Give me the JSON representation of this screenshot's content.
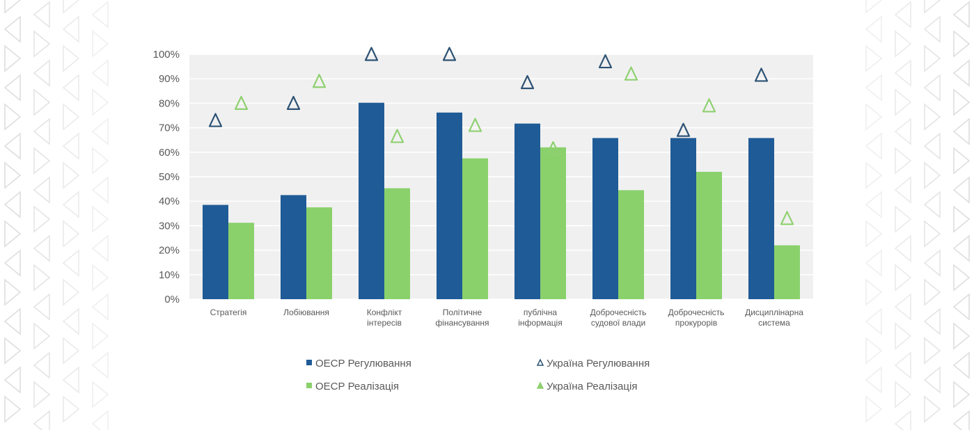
{
  "chart_data": {
    "type": "bar",
    "title": "",
    "xlabel": "",
    "ylabel": "",
    "ylim": [
      0,
      100
    ],
    "yticks": [
      "0%",
      "10%",
      "20%",
      "30%",
      "40%",
      "50%",
      "60%",
      "70%",
      "80%",
      "90%",
      "100%"
    ],
    "grid": true,
    "legend_position": "bottom",
    "categories": [
      [
        "Стратегія"
      ],
      [
        "Лобіювання"
      ],
      [
        "Конфлікт",
        "інтересів"
      ],
      [
        "Політичне",
        "фінансування"
      ],
      [
        "публічна",
        "інформація"
      ],
      [
        "Доброчесність",
        "судової влади"
      ],
      [
        "Доброчесність",
        "прокурорів"
      ],
      [
        "Дисциплінарна",
        "система"
      ]
    ],
    "series": [
      {
        "name": "ОЕСР Регулювання",
        "kind": "bar",
        "color": "#1f5b96",
        "values": [
          38.5,
          42.5,
          80.2,
          76.2,
          71.7,
          65.8,
          65.8,
          65.8
        ]
      },
      {
        "name": "ОЕСР Реалізація",
        "kind": "bar",
        "color": "#8ad16c",
        "values": [
          31.2,
          37.5,
          45.3,
          57.5,
          62.0,
          44.5,
          52.0,
          22.0
        ]
      },
      {
        "name": "Україна Регулювання",
        "kind": "marker-triangle",
        "color": "#2d5274",
        "values": [
          73,
          80,
          100,
          100,
          88.5,
          97,
          69,
          91.5
        ]
      },
      {
        "name": "Україна Реалізація",
        "kind": "marker-triangle",
        "color": "#8fd070",
        "values": [
          80,
          89,
          66.5,
          71,
          61.5,
          92,
          79,
          33
        ]
      }
    ],
    "legend": [
      {
        "label": "ОЕСР Регулювання",
        "marker": "square",
        "color": "#1f5b96"
      },
      {
        "label": "Україна Регулювання",
        "marker": "triangle",
        "color": "#2d5274"
      },
      {
        "label": "ОЕСР Реалізація",
        "marker": "square",
        "color": "#8ad16c"
      },
      {
        "label": "Україна Реалізація",
        "marker": "triangle",
        "color": "#8fd070"
      }
    ],
    "plot_background": "#f0f0f0",
    "gridline_color": "#ffffff"
  }
}
